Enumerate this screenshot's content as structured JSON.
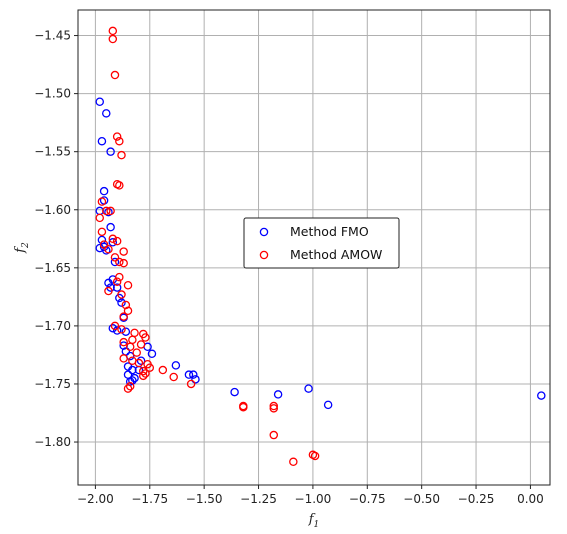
{
  "chart_data": {
    "type": "scatter",
    "xlabel": "f",
    "xlabel_sub": "1",
    "ylabel": "f",
    "ylabel_sub": "2",
    "xlim": [
      -2.08,
      0.09
    ],
    "ylim": [
      -1.837,
      -1.428
    ],
    "grid": true,
    "legend_position": "center",
    "x_ticks": [
      -2.0,
      -1.75,
      -1.5,
      -1.25,
      -1.0,
      -0.75,
      -0.5,
      -0.25,
      0.0
    ],
    "x_tick_labels": [
      "-2.00",
      "-1.75",
      "-1.50",
      "-1.25",
      "-1.00",
      "-0.75",
      "-0.50",
      "-0.25",
      "0.00"
    ],
    "y_ticks": [
      -1.45,
      -1.5,
      -1.55,
      -1.6,
      -1.65,
      -1.7,
      -1.75,
      -1.8
    ],
    "y_tick_labels": [
      "-1.45",
      "-1.50",
      "-1.55",
      "-1.60",
      "-1.65",
      "-1.70",
      "-1.75",
      "-1.80"
    ],
    "series": [
      {
        "name": "Method FMO",
        "color": "#0000ff",
        "points": [
          [
            -1.98,
            -1.507
          ],
          [
            -1.95,
            -1.517
          ],
          [
            -1.97,
            -1.541
          ],
          [
            -1.93,
            -1.55
          ],
          [
            -1.96,
            -1.584
          ],
          [
            -1.96,
            -1.592
          ],
          [
            -1.98,
            -1.601
          ],
          [
            -1.94,
            -1.602
          ],
          [
            -1.93,
            -1.615
          ],
          [
            -1.97,
            -1.626
          ],
          [
            -1.98,
            -1.633
          ],
          [
            -1.96,
            -1.632
          ],
          [
            -1.95,
            -1.635
          ],
          [
            -1.92,
            -1.628
          ],
          [
            -1.91,
            -1.645
          ],
          [
            -1.92,
            -1.66
          ],
          [
            -1.94,
            -1.663
          ],
          [
            -1.93,
            -1.667
          ],
          [
            -1.9,
            -1.667
          ],
          [
            -1.89,
            -1.676
          ],
          [
            -1.88,
            -1.68
          ],
          [
            -1.87,
            -1.693
          ],
          [
            -1.92,
            -1.702
          ],
          [
            -1.9,
            -1.704
          ],
          [
            -1.86,
            -1.705
          ],
          [
            -1.87,
            -1.717
          ],
          [
            -1.86,
            -1.722
          ],
          [
            -1.84,
            -1.726
          ],
          [
            -1.85,
            -1.735
          ],
          [
            -1.83,
            -1.738
          ],
          [
            -1.85,
            -1.742
          ],
          [
            -1.84,
            -1.748
          ],
          [
            -1.83,
            -1.747
          ],
          [
            -1.82,
            -1.745
          ],
          [
            -1.8,
            -1.738
          ],
          [
            -1.79,
            -1.73
          ],
          [
            -1.76,
            -1.718
          ],
          [
            -1.74,
            -1.724
          ],
          [
            -1.63,
            -1.734
          ],
          [
            -1.57,
            -1.742
          ],
          [
            -1.55,
            -1.742
          ],
          [
            -1.54,
            -1.746
          ],
          [
            -1.36,
            -1.757
          ],
          [
            -1.16,
            -1.759
          ],
          [
            -1.02,
            -1.754
          ],
          [
            -0.93,
            -1.768
          ],
          [
            0.05,
            -1.76
          ]
        ]
      },
      {
        "name": "Method AMOW",
        "color": "#ff0000",
        "points": [
          [
            -1.92,
            -1.446
          ],
          [
            -1.92,
            -1.453
          ],
          [
            -1.91,
            -1.484
          ],
          [
            -1.9,
            -1.537
          ],
          [
            -1.89,
            -1.541
          ],
          [
            -1.88,
            -1.553
          ],
          [
            -1.9,
            -1.578
          ],
          [
            -1.89,
            -1.579
          ],
          [
            -1.97,
            -1.593
          ],
          [
            -1.95,
            -1.601
          ],
          [
            -1.93,
            -1.601
          ],
          [
            -1.98,
            -1.607
          ],
          [
            -1.97,
            -1.619
          ],
          [
            -1.92,
            -1.625
          ],
          [
            -1.9,
            -1.627
          ],
          [
            -1.96,
            -1.63
          ],
          [
            -1.94,
            -1.634
          ],
          [
            -1.87,
            -1.636
          ],
          [
            -1.91,
            -1.641
          ],
          [
            -1.89,
            -1.645
          ],
          [
            -1.87,
            -1.646
          ],
          [
            -1.89,
            -1.658
          ],
          [
            -1.9,
            -1.662
          ],
          [
            -1.85,
            -1.665
          ],
          [
            -1.94,
            -1.67
          ],
          [
            -1.88,
            -1.673
          ],
          [
            -1.86,
            -1.682
          ],
          [
            -1.85,
            -1.687
          ],
          [
            -1.87,
            -1.692
          ],
          [
            -1.91,
            -1.7
          ],
          [
            -1.88,
            -1.703
          ],
          [
            -1.82,
            -1.706
          ],
          [
            -1.78,
            -1.707
          ],
          [
            -1.77,
            -1.71
          ],
          [
            -1.83,
            -1.712
          ],
          [
            -1.87,
            -1.714
          ],
          [
            -1.79,
            -1.716
          ],
          [
            -1.84,
            -1.718
          ],
          [
            -1.81,
            -1.723
          ],
          [
            -1.87,
            -1.728
          ],
          [
            -1.83,
            -1.73
          ],
          [
            -1.8,
            -1.732
          ],
          [
            -1.76,
            -1.733
          ],
          [
            -1.75,
            -1.736
          ],
          [
            -1.78,
            -1.739
          ],
          [
            -1.69,
            -1.738
          ],
          [
            -1.77,
            -1.741
          ],
          [
            -1.78,
            -1.743
          ],
          [
            -1.64,
            -1.744
          ],
          [
            -1.85,
            -1.754
          ],
          [
            -1.84,
            -1.752
          ],
          [
            -1.56,
            -1.75
          ],
          [
            -1.32,
            -1.769
          ],
          [
            -1.32,
            -1.77
          ],
          [
            -1.18,
            -1.769
          ],
          [
            -1.18,
            -1.771
          ],
          [
            -1.0,
            -1.811
          ],
          [
            -0.99,
            -1.812
          ],
          [
            -1.18,
            -1.794
          ],
          [
            -1.09,
            -1.817
          ]
        ]
      }
    ]
  }
}
